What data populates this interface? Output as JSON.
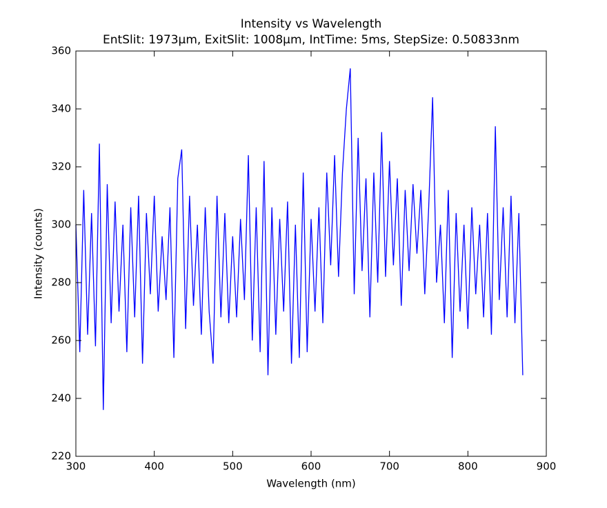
{
  "chart_data": {
    "type": "line",
    "title": "Intensity vs Wavelength",
    "subtitle": "EntSlit: 1973μm, ExitSlit: 1008μm, IntTime: 5ms, StepSize: 0.50833nm",
    "x_label": "Wavelength (nm)",
    "y_label": "Intensity (counts)",
    "xlim": [
      300,
      900
    ],
    "xticks": [
      300,
      400,
      500,
      600,
      700,
      800,
      900
    ],
    "ylim": [
      220,
      360
    ],
    "yticks": [
      220,
      240,
      260,
      280,
      300,
      320,
      340,
      360
    ],
    "series": [
      {
        "color": "#0000ff",
        "x": [
          300,
          305,
          310,
          315,
          320,
          325,
          330,
          335,
          340,
          345,
          350,
          355,
          360,
          365,
          370,
          375,
          380,
          385,
          390,
          395,
          400,
          405,
          410,
          415,
          420,
          425,
          430,
          435,
          440,
          445,
          450,
          455,
          460,
          465,
          470,
          475,
          480,
          485,
          490,
          495,
          500,
          505,
          510,
          515,
          520,
          525,
          530,
          535,
          540,
          545,
          550,
          555,
          560,
          565,
          570,
          575,
          580,
          585,
          590,
          595,
          600,
          605,
          610,
          615,
          620,
          625,
          630,
          635,
          640,
          645,
          650,
          655,
          660,
          665,
          670,
          675,
          680,
          685,
          690,
          695,
          700,
          705,
          710,
          715,
          720,
          725,
          730,
          735,
          740,
          745,
          750,
          755,
          760,
          765,
          770,
          775,
          780,
          785,
          790,
          795,
          800,
          805,
          810,
          815,
          820,
          825,
          830,
          835,
          840,
          845,
          850,
          855,
          860,
          865,
          870
        ],
        "values": [
          300,
          256,
          312,
          262,
          304,
          258,
          328,
          236,
          314,
          266,
          308,
          270,
          300,
          256,
          306,
          268,
          310,
          252,
          304,
          276,
          310,
          270,
          296,
          274,
          306,
          254,
          316,
          326,
          264,
          310,
          272,
          300,
          262,
          306,
          270,
          252,
          310,
          268,
          304,
          266,
          296,
          268,
          302,
          274,
          324,
          260,
          306,
          256,
          322,
          248,
          306,
          262,
          302,
          270,
          308,
          252,
          300,
          254,
          318,
          256,
          302,
          270,
          306,
          266,
          318,
          286,
          324,
          282,
          318,
          340,
          354,
          276,
          330,
          284,
          316,
          268,
          318,
          280,
          332,
          282,
          322,
          286,
          316,
          272,
          312,
          284,
          314,
          290,
          312,
          276,
          306,
          344,
          280,
          300,
          266,
          312,
          254,
          304,
          270,
          300,
          264,
          306,
          276,
          300,
          268,
          304,
          262,
          334,
          274,
          306,
          268,
          310,
          266,
          304,
          248
        ]
      }
    ]
  }
}
